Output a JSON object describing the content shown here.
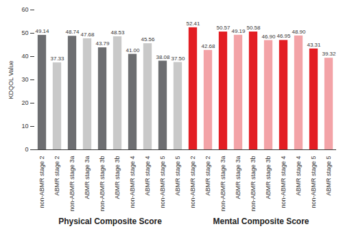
{
  "chart_data": {
    "type": "bar",
    "ylabel": "KDQOL Value",
    "categories": [
      "non-ABMR stage 2",
      "ABMR stage 2",
      "non-ABMR stage 3a",
      "ABMR stage 3a",
      "non-ABMR stage 3b",
      "ABMR stage 3b",
      "non-ABMR stage 4",
      "ABMR stage 4",
      "non-ABMR stage 5",
      "ABMR stage 5",
      "non-ABMR stage 2",
      "ABMR stage 2",
      "non-ABMR stage 3a",
      "ABMR stage 3a",
      "non-ABMR stage 3b",
      "ABMR stage 3b",
      "non-ABMR stage 4",
      "ABMR stage 4",
      "non-ABMR stage 5",
      "ABMR stage 5"
    ],
    "values": [
      49.14,
      37.33,
      48.74,
      47.68,
      43.79,
      48.53,
      41.0,
      45.56,
      38.08,
      37.5,
      52.41,
      42.68,
      50.57,
      49.19,
      50.58,
      46.9,
      46.95,
      48.9,
      43.31,
      39.32
    ],
    "value_labels": [
      "49.14",
      "37.33",
      "48.74",
      "47.68",
      "43.79",
      "48.53",
      "41.00",
      "45.56",
      "38.08",
      "37.50",
      "52.41",
      "42.68",
      "50.57",
      "49.19",
      "50.58",
      "46.90",
      "46.95",
      "48.90",
      "43.31",
      "39.32"
    ],
    "colors": [
      "#6d6e71",
      "#c9c9c9",
      "#6d6e71",
      "#c9c9c9",
      "#6d6e71",
      "#c9c9c9",
      "#6d6e71",
      "#c9c9c9",
      "#6d6e71",
      "#c9c9c9",
      "#e31e24",
      "#f3a3a7",
      "#e31e24",
      "#f3a3a7",
      "#e31e24",
      "#f3a3a7",
      "#e31e24",
      "#f3a3a7",
      "#e31e24",
      "#f3a3a7"
    ],
    "group_labels": [
      "Physical Composite Score",
      "Mental Composite Score"
    ],
    "ylim": [
      0,
      60
    ],
    "yticks": [
      0,
      10,
      20,
      30,
      40,
      50,
      60
    ],
    "grid": false,
    "data_labels": true
  }
}
